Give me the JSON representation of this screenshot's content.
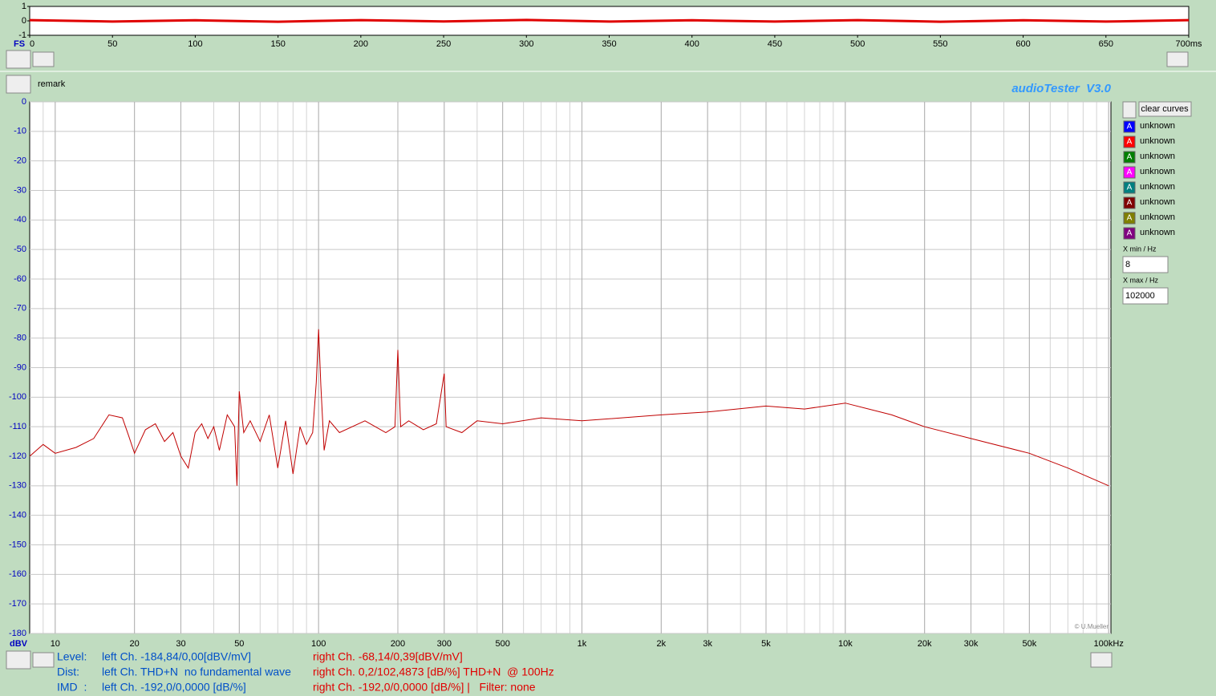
{
  "chart_data": [
    {
      "type": "line",
      "title": "audioTester  V3.0",
      "y_label": "dBV",
      "x_scale": "log",
      "grid": true,
      "minor_grid": true,
      "watermark": "© U.Mueller",
      "xlim": [
        8,
        102000
      ],
      "ylim": [
        -180,
        0
      ],
      "xticks": [
        10,
        20,
        30,
        50,
        100,
        200,
        300,
        500,
        {
          "value": 1000,
          "label": "1k"
        },
        {
          "value": 2000,
          "label": "2k"
        },
        {
          "value": 3000,
          "label": "3k"
        },
        {
          "value": 5000,
          "label": "5k"
        },
        {
          "value": 10000,
          "label": "10k"
        },
        {
          "value": 20000,
          "label": "20k"
        },
        {
          "value": 30000,
          "label": "30k"
        },
        {
          "value": 50000,
          "label": "50k"
        },
        {
          "value": 100000,
          "label": "100kHz"
        }
      ],
      "yticks": [
        0,
        -10,
        -20,
        -30,
        -40,
        -50,
        -60,
        -70,
        -80,
        -90,
        -100,
        -110,
        -120,
        -130,
        -140,
        -150,
        -160,
        -170,
        -180
      ],
      "x": [
        8,
        9,
        10,
        12,
        14,
        16,
        18,
        19,
        20,
        22,
        24,
        26,
        28,
        30,
        32,
        34,
        36,
        38,
        40,
        42,
        45,
        48,
        49,
        50,
        52,
        55,
        60,
        65,
        70,
        75,
        80,
        85,
        90,
        95,
        98,
        100,
        102,
        105,
        110,
        120,
        150,
        180,
        195,
        200,
        205,
        220,
        250,
        280,
        300,
        305,
        350,
        400,
        500,
        700,
        1000,
        2000,
        3000,
        5000,
        7000,
        10000,
        15000,
        20000,
        30000,
        50000,
        70000,
        100000
      ],
      "series": [
        {
          "color": "#c00000",
          "values": [
            -120,
            -116,
            -119,
            -117,
            -114,
            -106,
            -107,
            -113,
            -119,
            -111,
            -109,
            -115,
            -112,
            -120,
            -124,
            -112,
            -109,
            -114,
            -110,
            -118,
            -106,
            -110,
            -130,
            -98,
            -112,
            -108,
            -115,
            -106,
            -124,
            -108,
            -126,
            -110,
            -116,
            -112,
            -95,
            -77,
            -96,
            -118,
            -108,
            -112,
            -108,
            -112,
            -110,
            -84,
            -110,
            -108,
            -111,
            -109,
            -92,
            -110,
            -112,
            -108,
            -109,
            -107,
            -108,
            -106,
            -105,
            -103,
            -104,
            -102,
            -106,
            -110,
            -114,
            -119,
            -124,
            -130
          ]
        }
      ]
    },
    {
      "type": "line",
      "y_label": "FS",
      "grid": false,
      "xlim": [
        0,
        700
      ],
      "ylim": [
        -1,
        1
      ],
      "xticks": [
        0,
        50,
        100,
        150,
        200,
        250,
        300,
        350,
        400,
        450,
        500,
        550,
        600,
        650,
        {
          "value": 700,
          "label": "700ms"
        }
      ],
      "yticks": [
        1,
        0,
        -1
      ],
      "x": [
        0,
        50,
        100,
        150,
        200,
        250,
        300,
        350,
        400,
        450,
        500,
        550,
        600,
        650,
        700
      ],
      "series": [
        {
          "color": "#e00000",
          "values": [
            0.05,
            -0.05,
            0.04,
            -0.06,
            0.05,
            -0.04,
            0.06,
            -0.05,
            0.04,
            -0.05,
            0.05,
            -0.06,
            0.04,
            -0.05,
            0.05
          ]
        }
      ]
    }
  ],
  "ui": {
    "remark": "remark",
    "clear": "clear curves",
    "curves": [
      {
        "marker": "A",
        "name": "unknown",
        "color": "#0000ff"
      },
      {
        "marker": "A",
        "name": "unknown",
        "color": "#ff0000"
      },
      {
        "marker": "A",
        "name": "unknown",
        "color": "#008000"
      },
      {
        "marker": "A",
        "name": "unknown",
        "color": "#ff00ff"
      },
      {
        "marker": "A",
        "name": "unknown",
        "color": "#008080"
      },
      {
        "marker": "A",
        "name": "unknown",
        "color": "#800000"
      },
      {
        "marker": "A",
        "name": "unknown",
        "color": "#808000"
      },
      {
        "marker": "A",
        "name": "unknown",
        "color": "#800080"
      }
    ],
    "xmin_label": "X min / Hz",
    "xmin": "8",
    "xmax_label": "X max / Hz",
    "xmax": "102000",
    "status": [
      [
        "Level:",
        "left Ch. -184,84/0,00[dBV/mV]",
        "right Ch. -68,14/0,39[dBV/mV]"
      ],
      [
        "Dist:",
        "left Ch. THD+N  no fundamental wave",
        "right Ch. 0,2/102,4873 [dB/%] THD+N  @ 100Hz"
      ],
      [
        "IMD  :",
        "left Ch. -192,0/0,0000 [dB/%]",
        "right Ch. -192,0/0,0000 [dB/%] |   Filter: none"
      ]
    ]
  }
}
